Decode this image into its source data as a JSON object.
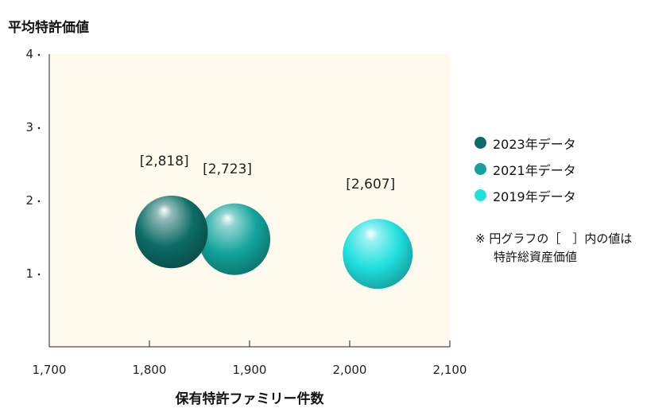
{
  "chart_data": {
    "type": "scatter",
    "title": "",
    "ylabel": "平均特許価値",
    "xlabel": "保有特許ファミリー件数",
    "xlim": [
      1700,
      2100
    ],
    "ylim": [
      0,
      4
    ],
    "x_ticks": [
      "1,700",
      "1,800",
      "1,900",
      "2,000",
      "2,100"
    ],
    "y_ticks": [
      "1",
      "2",
      "3",
      "4"
    ],
    "series": [
      {
        "name": "2023年データ",
        "x": 1822,
        "y": 1.57,
        "size": 2818,
        "label": "[2,818]",
        "color": "#0c6b66"
      },
      {
        "name": "2021年データ",
        "x": 1885,
        "y": 1.47,
        "size": 2723,
        "label": "[2,723]",
        "color": "#12a39b"
      },
      {
        "name": "2019年データ",
        "x": 2028,
        "y": 1.27,
        "size": 2607,
        "label": "[2,607]",
        "color": "#1ee0df"
      }
    ],
    "note_line1": "※ 円グラフの［　］内の値は",
    "note_line2": "特許総資産価値"
  },
  "colors": {
    "plot_background": "#fefaed"
  }
}
